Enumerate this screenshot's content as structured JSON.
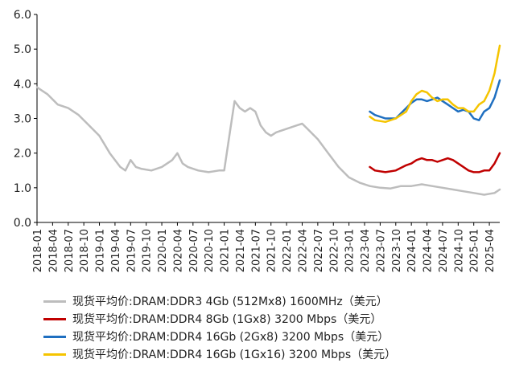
{
  "chart_data": {
    "type": "line",
    "title": "",
    "xlabel": "",
    "ylabel": "",
    "ylim": [
      0,
      6
    ],
    "yticks": [
      "0.0",
      "1.0",
      "2.0",
      "3.0",
      "4.0",
      "5.0",
      "6.0"
    ],
    "xlim": [
      "2018-01",
      "2025-06"
    ],
    "xticks": [
      "2018-01",
      "2018-04",
      "2018-07",
      "2018-10",
      "2019-01",
      "2019-04",
      "2019-07",
      "2019-10",
      "2020-01",
      "2020-04",
      "2020-07",
      "2020-10",
      "2021-01",
      "2021-04",
      "2021-07",
      "2021-10",
      "2022-01",
      "2022-04",
      "2022-07",
      "2022-10",
      "2023-01",
      "2023-04",
      "2023-07",
      "2023-10",
      "2024-01",
      "2024-04",
      "2024-07",
      "2024-10",
      "2025-01",
      "2025-04"
    ],
    "grid": false,
    "legend_position": "bottom",
    "series": [
      {
        "name": "现货平均价:DRAM:DDR3 4Gb (512Mx8) 1600MHz（美元）",
        "color": "#bdbdbd",
        "x": [
          "2018-01",
          "2018-03",
          "2018-05",
          "2018-07",
          "2018-09",
          "2018-11",
          "2019-01",
          "2019-03",
          "2019-05",
          "2019-06",
          "2019-07",
          "2019-08",
          "2019-09",
          "2019-11",
          "2020-01",
          "2020-03",
          "2020-04",
          "2020-05",
          "2020-06",
          "2020-08",
          "2020-10",
          "2020-12",
          "2021-01",
          "2021-02",
          "2021-03",
          "2021-04",
          "2021-05",
          "2021-06",
          "2021-07",
          "2021-08",
          "2021-09",
          "2021-10",
          "2021-11",
          "2022-01",
          "2022-03",
          "2022-04",
          "2022-05",
          "2022-07",
          "2022-09",
          "2022-11",
          "2023-01",
          "2023-03",
          "2023-05",
          "2023-07",
          "2023-09",
          "2023-11",
          "2024-01",
          "2024-03",
          "2024-05",
          "2024-07",
          "2024-09",
          "2024-11",
          "2025-01",
          "2025-03",
          "2025-05",
          "2025-06"
        ],
        "y": [
          3.9,
          3.7,
          3.4,
          3.3,
          3.1,
          2.8,
          2.5,
          2.0,
          1.6,
          1.5,
          1.8,
          1.6,
          1.55,
          1.5,
          1.6,
          1.8,
          2.0,
          1.7,
          1.6,
          1.5,
          1.45,
          1.5,
          1.5,
          2.5,
          3.5,
          3.3,
          3.2,
          3.3,
          3.2,
          2.8,
          2.6,
          2.5,
          2.6,
          2.7,
          2.8,
          2.85,
          2.7,
          2.4,
          2.0,
          1.6,
          1.3,
          1.15,
          1.05,
          1.0,
          0.98,
          1.05,
          1.05,
          1.1,
          1.05,
          1.0,
          0.95,
          0.9,
          0.85,
          0.8,
          0.85,
          0.95
        ]
      },
      {
        "name": "现货平均价:DRAM:DDR4 8Gb (1Gx8) 3200 Mbps（美元）",
        "color": "#c00000",
        "x": [
          "2023-05",
          "2023-06",
          "2023-08",
          "2023-10",
          "2023-12",
          "2024-01",
          "2024-02",
          "2024-03",
          "2024-04",
          "2024-05",
          "2024-06",
          "2024-07",
          "2024-08",
          "2024-09",
          "2024-10",
          "2024-11",
          "2024-12",
          "2025-01",
          "2025-02",
          "2025-03",
          "2025-04",
          "2025-05",
          "2025-06"
        ],
        "y": [
          1.6,
          1.5,
          1.45,
          1.5,
          1.65,
          1.7,
          1.8,
          1.85,
          1.8,
          1.8,
          1.75,
          1.8,
          1.85,
          1.8,
          1.7,
          1.6,
          1.5,
          1.45,
          1.45,
          1.5,
          1.5,
          1.7,
          2.0
        ]
      },
      {
        "name": "现货平均价:DRAM:DDR4 16Gb (2Gx8) 3200 Mbps（美元）",
        "color": "#1f6fc0",
        "x": [
          "2023-05",
          "2023-06",
          "2023-08",
          "2023-10",
          "2023-12",
          "2024-01",
          "2024-02",
          "2024-03",
          "2024-04",
          "2024-05",
          "2024-06",
          "2024-07",
          "2024-08",
          "2024-09",
          "2024-10",
          "2024-11",
          "2024-12",
          "2025-01",
          "2025-02",
          "2025-03",
          "2025-04",
          "2025-05",
          "2025-06"
        ],
        "y": [
          3.2,
          3.1,
          3.0,
          3.0,
          3.3,
          3.45,
          3.55,
          3.55,
          3.5,
          3.55,
          3.6,
          3.5,
          3.4,
          3.3,
          3.2,
          3.25,
          3.2,
          3.0,
          2.95,
          3.2,
          3.3,
          3.6,
          4.1
        ]
      },
      {
        "name": "现货平均价:DRAM:DDR4 16Gb (1Gx16) 3200 Mbps（美元）",
        "color": "#f5c400",
        "x": [
          "2023-05",
          "2023-06",
          "2023-08",
          "2023-10",
          "2023-12",
          "2024-01",
          "2024-02",
          "2024-03",
          "2024-04",
          "2024-05",
          "2024-06",
          "2024-07",
          "2024-08",
          "2024-09",
          "2024-10",
          "2024-11",
          "2024-12",
          "2025-01",
          "2025-02",
          "2025-03",
          "2025-04",
          "2025-05",
          "2025-06"
        ],
        "y": [
          3.05,
          2.95,
          2.9,
          3.0,
          3.2,
          3.5,
          3.7,
          3.8,
          3.75,
          3.6,
          3.5,
          3.55,
          3.55,
          3.4,
          3.3,
          3.3,
          3.2,
          3.2,
          3.4,
          3.5,
          3.8,
          4.3,
          5.1
        ]
      }
    ]
  }
}
